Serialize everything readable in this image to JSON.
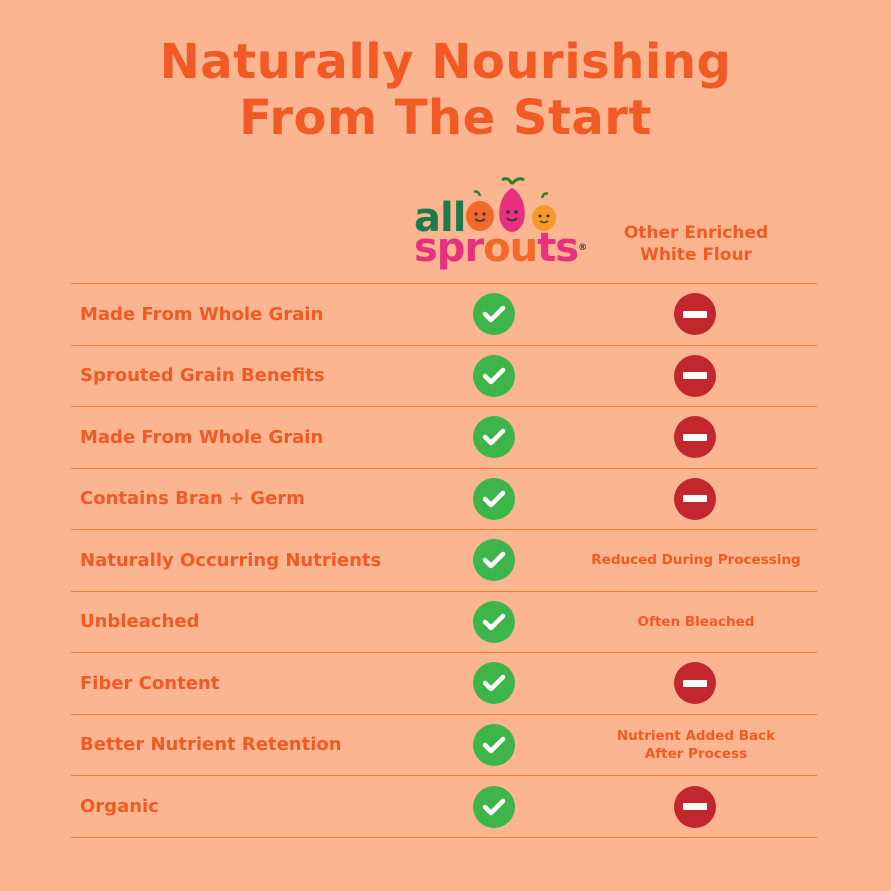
{
  "title": {
    "line1": "Naturally Nourishing",
    "line2": "From The Start"
  },
  "logo": {
    "word1": "all",
    "word2_part1": "spr",
    "word2_part2": "ou",
    "word2_part3": "ts",
    "registered": "®"
  },
  "other_header": {
    "line1": "Other Enriched",
    "line2": "White Flour"
  },
  "rows": [
    {
      "feature": "Made From Whole Grain",
      "all_sprouts": "check",
      "other": "minus",
      "other_note": ""
    },
    {
      "feature": "Sprouted Grain Benefits",
      "all_sprouts": "check",
      "other": "minus",
      "other_note": ""
    },
    {
      "feature": "Made From Whole Grain",
      "all_sprouts": "check",
      "other": "minus",
      "other_note": ""
    },
    {
      "feature": "Contains Bran + Germ",
      "all_sprouts": "check",
      "other": "minus",
      "other_note": ""
    },
    {
      "feature": "Naturally Occurring Nutrients",
      "all_sprouts": "check",
      "other": "note",
      "other_note": "Reduced During Processing"
    },
    {
      "feature": "Unbleached",
      "all_sprouts": "check",
      "other": "note",
      "other_note": "Often Bleached"
    },
    {
      "feature": "Fiber Content",
      "all_sprouts": "check",
      "other": "minus",
      "other_note": ""
    },
    {
      "feature": "Better Nutrient Retention",
      "all_sprouts": "check",
      "other": "note",
      "other_note": "Nutrient Added Back\nAfter Process"
    },
    {
      "feature": "Organic",
      "all_sprouts": "check",
      "other": "minus",
      "other_note": ""
    }
  ],
  "colors": {
    "background": "#fbb691",
    "accent": "#f15a24",
    "check": "#3db54a",
    "minus": "#c1272d"
  },
  "icons": {
    "yes": "check-circle-icon",
    "no": "minus-circle-icon"
  }
}
